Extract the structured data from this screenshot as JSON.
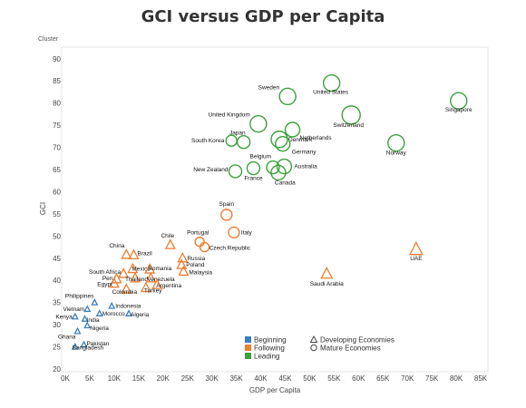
{
  "title": "GCI versus GDP per Capita",
  "cluster_label": "Cluster",
  "chart_data": {
    "type": "scatter",
    "xlabel": "GDP per Capita",
    "ylabel": "GCI",
    "xlim": [
      0,
      85000
    ],
    "ylim": [
      20,
      92
    ],
    "x_ticks": [
      0,
      5000,
      10000,
      15000,
      20000,
      25000,
      30000,
      35000,
      40000,
      45000,
      50000,
      55000,
      60000,
      65000,
      70000,
      75000,
      80000,
      85000
    ],
    "x_tick_labels": [
      "0K",
      "5K",
      "10K",
      "15K",
      "20K",
      "25K",
      "30K",
      "35K",
      "40K",
      "45K",
      "50K",
      "55K",
      "60K",
      "65K",
      "70K",
      "75K",
      "80K",
      "85K"
    ],
    "y_ticks": [
      20,
      25,
      30,
      35,
      40,
      45,
      50,
      55,
      60,
      65,
      70,
      75,
      80,
      85,
      90
    ],
    "y_tick_labels": [
      "20",
      "25",
      "30",
      "35",
      "40",
      "45",
      "50",
      "55",
      "60",
      "65",
      "70",
      "75",
      "80",
      "85",
      "90"
    ],
    "grid": false,
    "colors": {
      "Beginning": "#3a7fc1",
      "Following": "#ee7d31",
      "Leading": "#3aa23a"
    },
    "legend": {
      "clusters": [
        "Beginning",
        "Following",
        "Leading"
      ],
      "shapes": [
        {
          "shape": "triangle",
          "label": "Developing Economies"
        },
        {
          "shape": "circle",
          "label": "Mature Economies"
        }
      ]
    },
    "points": [
      {
        "label": "Singapore",
        "x": 80500,
        "y": 80.5,
        "cluster": "Leading",
        "shape": "circle",
        "size": 9
      },
      {
        "label": "United States",
        "x": 54500,
        "y": 84.5,
        "cluster": "Leading",
        "shape": "circle",
        "size": 9
      },
      {
        "label": "Sweden",
        "x": 45500,
        "y": 81.5,
        "cluster": "Leading",
        "shape": "circle",
        "size": 9
      },
      {
        "label": "Switzerland",
        "x": 58500,
        "y": 77.3,
        "cluster": "Leading",
        "shape": "circle",
        "size": 10
      },
      {
        "label": "United Kingdom",
        "x": 39500,
        "y": 75.3,
        "cluster": "Leading",
        "shape": "circle",
        "size": 9
      },
      {
        "label": "Netherlands",
        "x": 46500,
        "y": 74.0,
        "cluster": "Leading",
        "shape": "circle",
        "size": 8
      },
      {
        "label": "Denmark",
        "x": 43800,
        "y": 71.8,
        "cluster": "Leading",
        "shape": "circle",
        "size": 9
      },
      {
        "label": "Germany",
        "x": 44500,
        "y": 70.8,
        "cluster": "Leading",
        "shape": "circle",
        "size": 8
      },
      {
        "label": "Japan",
        "x": 36500,
        "y": 71.2,
        "cluster": "Leading",
        "shape": "circle",
        "size": 7
      },
      {
        "label": "South Korea",
        "x": 34000,
        "y": 71.5,
        "cluster": "Leading",
        "shape": "circle",
        "size": 6
      },
      {
        "label": "Norway",
        "x": 67700,
        "y": 71.0,
        "cluster": "Leading",
        "shape": "circle",
        "size": 9
      },
      {
        "label": "Belgium",
        "x": 42500,
        "y": 65.5,
        "cluster": "Leading",
        "shape": "circle",
        "size": 7
      },
      {
        "label": "New Zealand",
        "x": 34800,
        "y": 64.6,
        "cluster": "Leading",
        "shape": "circle",
        "size": 7
      },
      {
        "label": "France",
        "x": 38500,
        "y": 65.3,
        "cluster": "Leading",
        "shape": "circle",
        "size": 7
      },
      {
        "label": "Australia",
        "x": 44800,
        "y": 65.7,
        "cluster": "Leading",
        "shape": "circle",
        "size": 8
      },
      {
        "label": "Canada",
        "x": 43600,
        "y": 64.3,
        "cluster": "Leading",
        "shape": "circle",
        "size": 8
      },
      {
        "label": "Spain",
        "x": 33000,
        "y": 54.8,
        "cluster": "Following",
        "shape": "circle",
        "size": 6
      },
      {
        "label": "Italy",
        "x": 34500,
        "y": 50.8,
        "cluster": "Following",
        "shape": "circle",
        "size": 6
      },
      {
        "label": "Portugal",
        "x": 27500,
        "y": 48.7,
        "cluster": "Following",
        "shape": "circle",
        "size": 5
      },
      {
        "label": "Czech Republic",
        "x": 28500,
        "y": 47.5,
        "cluster": "Following",
        "shape": "circle",
        "size": 5
      },
      {
        "label": "Chile",
        "x": 21500,
        "y": 48.0,
        "cluster": "Following",
        "shape": "triangle",
        "size": 5
      },
      {
        "label": "China",
        "x": 12500,
        "y": 45.8,
        "cluster": "Following",
        "shape": "triangle",
        "size": 5
      },
      {
        "label": "Brazil",
        "x": 14000,
        "y": 45.7,
        "cluster": "Following",
        "shape": "triangle",
        "size": 5
      },
      {
        "label": "Russia",
        "x": 24000,
        "y": 45.0,
        "cluster": "Following",
        "shape": "triangle",
        "size": 5
      },
      {
        "label": "Poland",
        "x": 23800,
        "y": 43.5,
        "cluster": "Following",
        "shape": "triangle",
        "size": 5
      },
      {
        "label": "Malaysia",
        "x": 24200,
        "y": 42.0,
        "cluster": "Following",
        "shape": "triangle",
        "size": 5
      },
      {
        "label": "Mexico",
        "x": 13800,
        "y": 42.6,
        "cluster": "Following",
        "shape": "triangle",
        "size": 5
      },
      {
        "label": "Romania",
        "x": 17300,
        "y": 42.5,
        "cluster": "Following",
        "shape": "triangle",
        "size": 5
      },
      {
        "label": "South Africa",
        "x": 11900,
        "y": 41.5,
        "cluster": "Following",
        "shape": "triangle",
        "size": 5
      },
      {
        "label": "Peru",
        "x": 10500,
        "y": 40.3,
        "cluster": "Following",
        "shape": "triangle",
        "size": 5
      },
      {
        "label": "Thailand",
        "x": 14300,
        "y": 40.5,
        "cluster": "Following",
        "shape": "triangle",
        "size": 5
      },
      {
        "label": "Venezuela",
        "x": 17500,
        "y": 40.5,
        "cluster": "Following",
        "shape": "triangle",
        "size": 5
      },
      {
        "label": "Egypt",
        "x": 10000,
        "y": 39.3,
        "cluster": "Following",
        "shape": "triangle",
        "size": 5
      },
      {
        "label": "Argentina",
        "x": 18800,
        "y": 39.0,
        "cluster": "Following",
        "shape": "triangle",
        "size": 5
      },
      {
        "label": "Colombia",
        "x": 12500,
        "y": 38.0,
        "cluster": "Following",
        "shape": "triangle",
        "size": 5
      },
      {
        "label": "Turkey",
        "x": 16500,
        "y": 38.3,
        "cluster": "Following",
        "shape": "triangle",
        "size": 5
      },
      {
        "label": "Saudi Arabia",
        "x": 53500,
        "y": 41.5,
        "cluster": "Following",
        "shape": "triangle",
        "size": 6
      },
      {
        "label": "UAE",
        "x": 71800,
        "y": 47.0,
        "cluster": "Following",
        "shape": "triangle",
        "size": 7
      },
      {
        "label": "Philippines",
        "x": 6000,
        "y": 35.0,
        "cluster": "Beginning",
        "shape": "triangle",
        "size": 3
      },
      {
        "label": "Vietnam",
        "x": 4500,
        "y": 33.5,
        "cluster": "Beginning",
        "shape": "triangle",
        "size": 3
      },
      {
        "label": "Indonesia",
        "x": 9500,
        "y": 34.2,
        "cluster": "Beginning",
        "shape": "triangle",
        "size": 3
      },
      {
        "label": "Morocco",
        "x": 7000,
        "y": 32.5,
        "cluster": "Beginning",
        "shape": "triangle",
        "size": 3
      },
      {
        "label": "Algeria",
        "x": 13000,
        "y": 32.5,
        "cluster": "Beginning",
        "shape": "triangle",
        "size": 3
      },
      {
        "label": "Kenya",
        "x": 2000,
        "y": 31.8,
        "cluster": "Beginning",
        "shape": "triangle",
        "size": 3
      },
      {
        "label": "India",
        "x": 4000,
        "y": 31.3,
        "cluster": "Beginning",
        "shape": "triangle",
        "size": 3
      },
      {
        "label": "Nigeria",
        "x": 4500,
        "y": 29.8,
        "cluster": "Beginning",
        "shape": "triangle",
        "size": 3
      },
      {
        "label": "Ghana",
        "x": 2500,
        "y": 28.5,
        "cluster": "Beginning",
        "shape": "triangle",
        "size": 3
      },
      {
        "label": "Pakistan",
        "x": 3800,
        "y": 25.5,
        "cluster": "Beginning",
        "shape": "triangle",
        "size": 3
      },
      {
        "label": "Bangladesh",
        "x": 2000,
        "y": 25.0,
        "cluster": "Beginning",
        "shape": "triangle",
        "size": 3
      }
    ]
  }
}
